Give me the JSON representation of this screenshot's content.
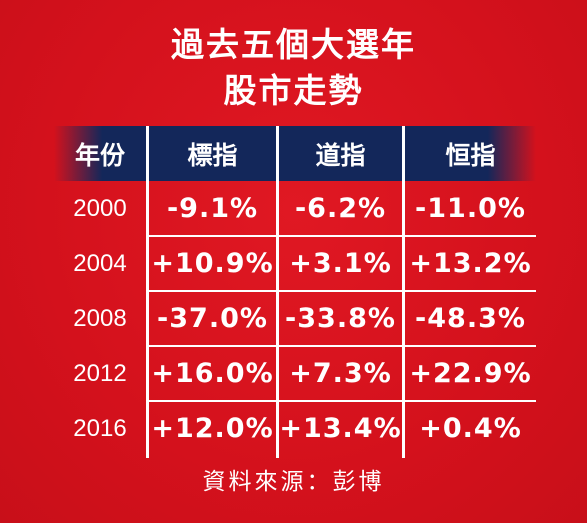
{
  "title": {
    "line1": "過去五個大選年",
    "line2": "股市走勢"
  },
  "table": {
    "headers": [
      "年份",
      "標指",
      "道指",
      "恒指"
    ],
    "rows": [
      {
        "year": "2000",
        "spx": "-9.1%",
        "dji": "-6.2%",
        "hsi": "-11.0%"
      },
      {
        "year": "2004",
        "spx": "+10.9%",
        "dji": "+3.1%",
        "hsi": "+13.2%"
      },
      {
        "year": "2008",
        "spx": "-37.0%",
        "dji": "-33.8%",
        "hsi": "-48.3%"
      },
      {
        "year": "2012",
        "spx": "+16.0%",
        "dji": "+7.3%",
        "hsi": "+22.9%"
      },
      {
        "year": "2016",
        "spx": "+12.0%",
        "dji": "+13.4%",
        "hsi": "+0.4%"
      }
    ]
  },
  "source": "資料來源：彭博",
  "colors": {
    "background": "#d7121d",
    "header_band": "#13275a",
    "text": "#ffffff"
  }
}
